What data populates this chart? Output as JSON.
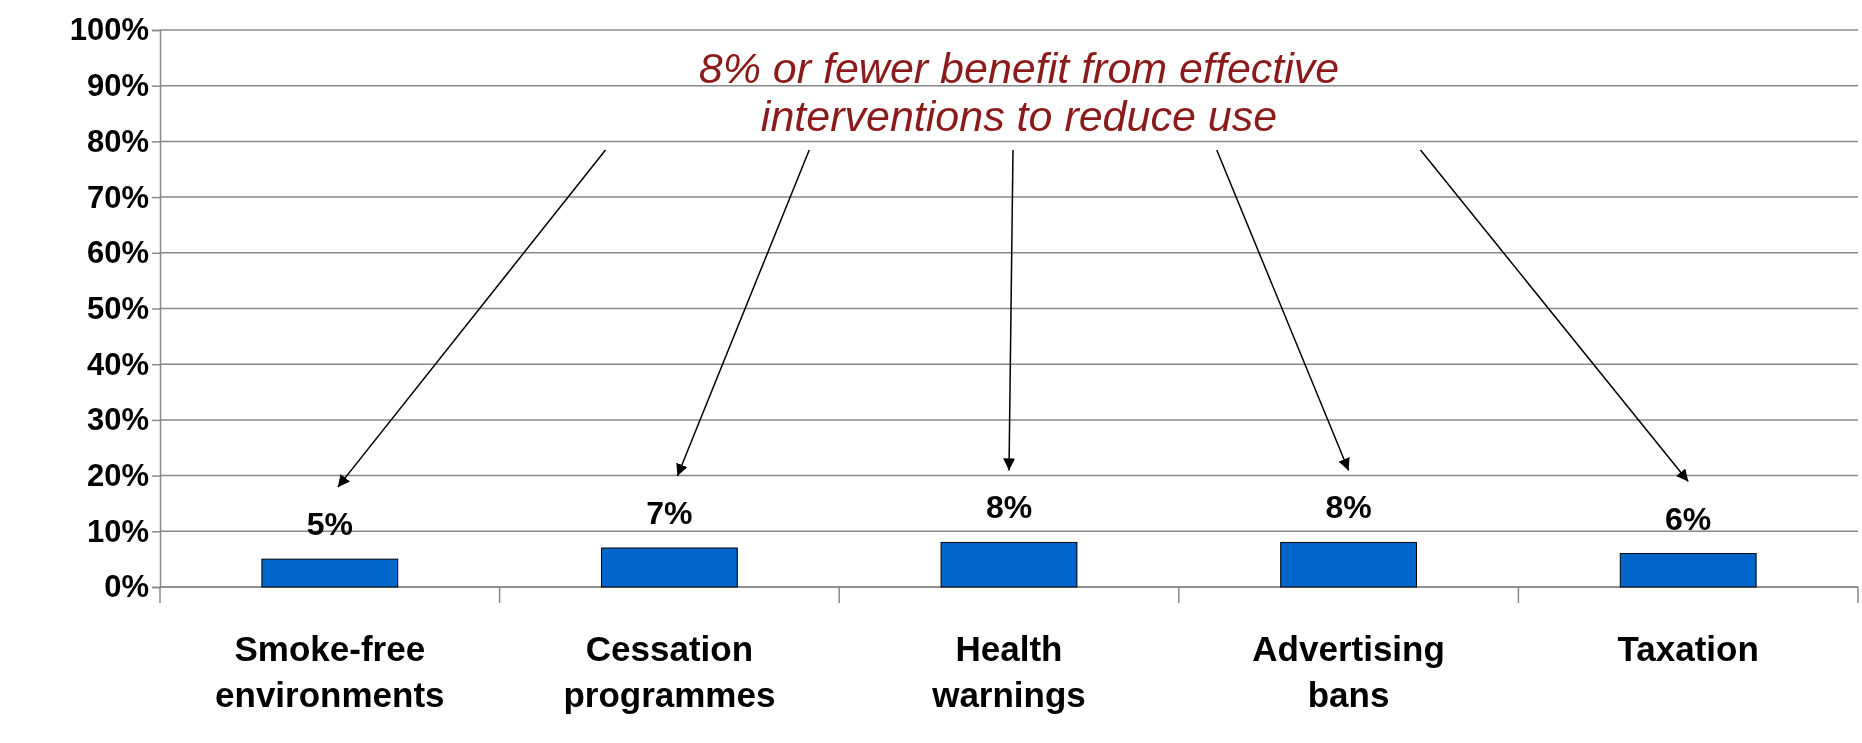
{
  "chart_data": {
    "type": "bar",
    "categories": [
      "Smoke-free environments",
      "Cessation programmes",
      "Health warnings",
      "Advertising bans",
      "Taxation"
    ],
    "values": [
      5,
      7,
      8,
      8,
      6
    ],
    "color": "#0066cc",
    "ylim": [
      0,
      100
    ],
    "yticks": [
      {
        "value": 0,
        "label": "0%"
      },
      {
        "value": 10,
        "label": "10%"
      },
      {
        "value": 20,
        "label": "20%"
      },
      {
        "value": 30,
        "label": "30%"
      },
      {
        "value": 40,
        "label": "40%"
      },
      {
        "value": 50,
        "label": "50%"
      },
      {
        "value": 60,
        "label": "60%"
      },
      {
        "value": 70,
        "label": "70%"
      },
      {
        "value": 80,
        "label": "80%"
      },
      {
        "value": 90,
        "label": "90%"
      },
      {
        "value": 100,
        "label": "100%"
      }
    ],
    "grid": "y",
    "value_labels": [
      "5%",
      "7%",
      "8%",
      "8%",
      "6%"
    ],
    "annotations": [
      "8% or fewer benefit from effective interventions to reduce use"
    ]
  }
}
